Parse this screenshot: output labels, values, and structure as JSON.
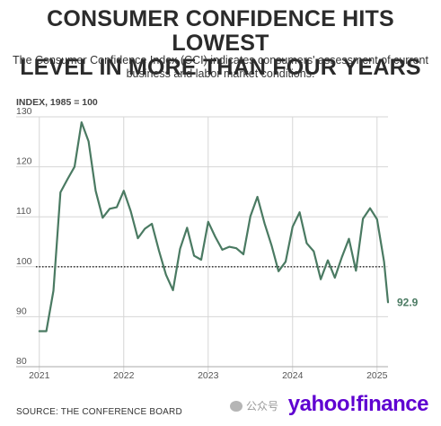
{
  "header": {
    "title_line1": "CONSUMER CONFIDENCE HITS LOWEST",
    "title_line2": "LEVEL IN MORE THAN FOUR YEARS",
    "subtitle_line1": "The Consumer Confidence Index (CCI) indicates consumers' assessment of current",
    "subtitle_line2": "business and labor market conditions."
  },
  "footer": {
    "source": "SOURCE: THE CONFERENCE BOARD",
    "brand": "yahoo!finance",
    "watermark": "公众号"
  },
  "colors": {
    "line": "#4a7a62",
    "grid": "#d6d6d6",
    "reference": "#222222",
    "brand": "#5f01d1"
  },
  "chart_data": {
    "type": "line",
    "title": "",
    "ylabel": "INDEX, 1985 = 100",
    "xlabel": "",
    "ylim": [
      80,
      130
    ],
    "yticks": [
      80,
      90,
      100,
      110,
      120,
      130
    ],
    "xlim": [
      2020.96,
      2025.13
    ],
    "xticks": [
      {
        "x": 2021,
        "label": "2021"
      },
      {
        "x": 2022,
        "label": "2022"
      },
      {
        "x": 2023,
        "label": "2023"
      },
      {
        "x": 2024,
        "label": "2024"
      },
      {
        "x": 2025,
        "label": "2025"
      }
    ],
    "reference_line": 100,
    "grid": true,
    "end_label": "92.9",
    "series": [
      {
        "x": [
          2021.0,
          2021.083,
          2021.167,
          2021.25,
          2021.333,
          2021.417,
          2021.5,
          2021.583,
          2021.667,
          2021.75,
          2021.833,
          2021.917,
          2022.0,
          2022.083,
          2022.167,
          2022.25,
          2022.333,
          2022.417,
          2022.5,
          2022.583,
          2022.667,
          2022.75,
          2022.833,
          2022.917,
          2023.0,
          2023.083,
          2023.167,
          2023.25,
          2023.333,
          2023.417,
          2023.5,
          2023.583,
          2023.667,
          2023.75,
          2023.833,
          2023.917,
          2024.0,
          2024.083,
          2024.167,
          2024.25,
          2024.333,
          2024.417,
          2024.5,
          2024.583,
          2024.667,
          2024.75,
          2024.833,
          2024.917,
          2025.0,
          2025.083,
          2025.13
        ],
        "values": [
          87.1,
          87.1,
          95.2,
          114.9,
          117.5,
          120.0,
          128.9,
          125.1,
          115.2,
          109.8,
          111.6,
          111.9,
          115.2,
          111.1,
          105.7,
          107.6,
          108.6,
          103.2,
          98.4,
          95.3,
          103.6,
          107.8,
          102.2,
          101.4,
          109.0,
          106.0,
          103.4,
          104.0,
          103.7,
          102.5,
          110.1,
          114.0,
          108.7,
          104.3,
          99.1,
          101.0,
          108.0,
          110.9,
          104.7,
          103.1,
          97.5,
          101.3,
          97.8,
          101.9,
          105.6,
          99.2,
          109.6,
          111.7,
          109.5,
          101.0,
          92.9
        ]
      }
    ]
  }
}
